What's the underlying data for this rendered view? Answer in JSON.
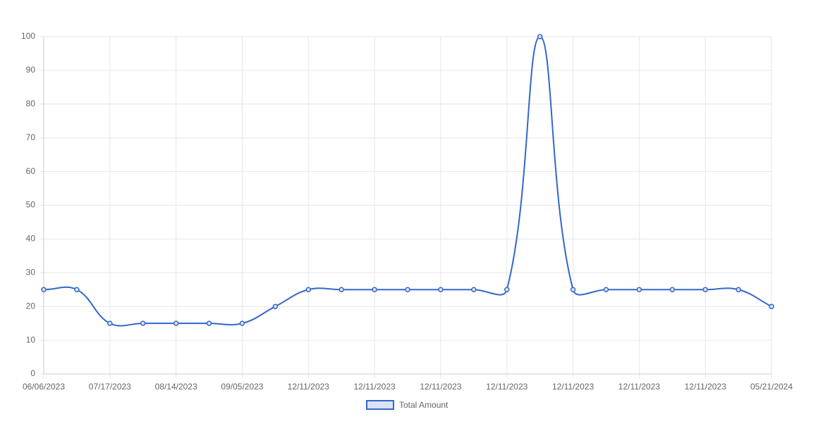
{
  "chart_data": {
    "type": "line",
    "categories": [
      "06/06/2023",
      null,
      "07/17/2023",
      null,
      "08/14/2023",
      null,
      "09/05/2023",
      null,
      "12/11/2023",
      null,
      "12/11/2023",
      null,
      "12/11/2023",
      null,
      "12/11/2023",
      null,
      "12/11/2023",
      null,
      "12/11/2023",
      null,
      "12/11/2023",
      null,
      "05/21/2024"
    ],
    "series": [
      {
        "name": "Total Amount",
        "color": "#3366cc",
        "values": [
          25,
          25,
          15,
          15,
          15,
          15,
          15,
          20,
          25,
          25,
          25,
          25,
          25,
          25,
          25,
          100,
          25,
          25,
          25,
          25,
          25,
          25,
          20
        ]
      }
    ],
    "ylim": [
      0,
      100
    ],
    "yticks": [
      0,
      10,
      20,
      30,
      40,
      50,
      60,
      70,
      80,
      90,
      100
    ],
    "grid": true,
    "legend": "bottom"
  }
}
